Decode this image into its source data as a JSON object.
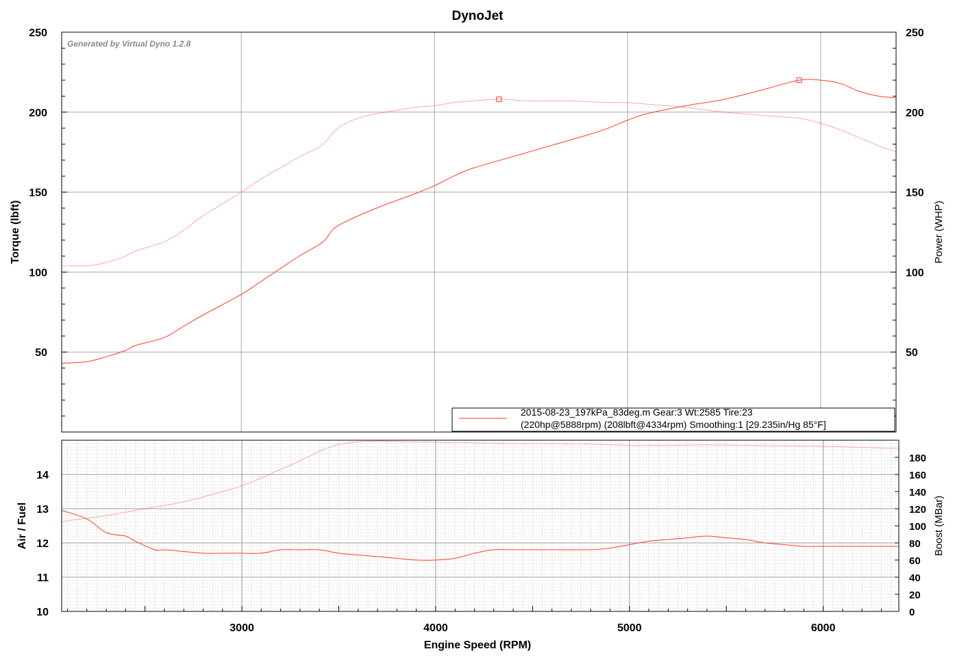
{
  "chart_data": [
    {
      "type": "line",
      "title": "DynoJet",
      "watermark": "Generated by Virtual Dyno 1.2.8",
      "xlim": [
        2070,
        6390
      ],
      "x_ticks": [
        "3000",
        "4000",
        "5000",
        "6000"
      ],
      "ylabel": "Torque (lbft)",
      "ylim": [
        0,
        250
      ],
      "y_ticks": [
        "50",
        "100",
        "150",
        "200",
        "250"
      ],
      "y2label": "Power (WHP)",
      "y2lim": [
        0,
        250
      ],
      "y2_ticks": [
        "50",
        "100",
        "150",
        "200",
        "250"
      ],
      "grid": true,
      "color": "#ff3a2a",
      "legend": {
        "placement": "bottom-right",
        "line1": "2015-08-23_197kPa_83deg.m Gear:3 Wt:2585 Tire:23",
        "line2": "(220hp@5888rpm) (208lbft@4334rpm) Smoothing:1 [29.235in/Hg 85°F]"
      },
      "series": [
        {
          "key": "torque",
          "style": "dotted",
          "axis": "left",
          "marker": [
            4334,
            208
          ],
          "x": [
            2070,
            2200,
            2300,
            2400,
            2450,
            2600,
            2700,
            2800,
            3000,
            3100,
            3200,
            3300,
            3400,
            3440,
            3500,
            3600,
            3700,
            3800,
            3900,
            4000,
            4100,
            4200,
            4334,
            4500,
            4700,
            4900,
            5000,
            5100,
            5300,
            5500,
            5700,
            5800,
            5900,
            6000,
            6100,
            6200,
            6300,
            6390
          ],
          "y": [
            104,
            104,
            106,
            110,
            113,
            119,
            126,
            135,
            150,
            158,
            165,
            172,
            178,
            182,
            190,
            196,
            199,
            201,
            203,
            204,
            206,
            207,
            208,
            207,
            207,
            206,
            206,
            205,
            203,
            200,
            198,
            197,
            196,
            193,
            189,
            184,
            179,
            175
          ]
        },
        {
          "key": "power",
          "style": "solid",
          "axis": "right",
          "marker": [
            5888,
            220
          ],
          "x": [
            2070,
            2200,
            2300,
            2400,
            2450,
            2600,
            2700,
            2800,
            3000,
            3100,
            3200,
            3300,
            3400,
            3440,
            3500,
            3700,
            3900,
            4000,
            4100,
            4200,
            4400,
            4600,
            4800,
            4900,
            5000,
            5100,
            5300,
            5500,
            5700,
            5888,
            6000,
            6100,
            6200,
            6300,
            6390
          ],
          "y": [
            43,
            44,
            47,
            51,
            54,
            59,
            66,
            73,
            86,
            94,
            102,
            110,
            117,
            121,
            129,
            140,
            149,
            154,
            160,
            165,
            172,
            179,
            186,
            190,
            195,
            199,
            204,
            208,
            214,
            220,
            220,
            218,
            213,
            210,
            209
          ]
        }
      ]
    },
    {
      "type": "line",
      "xlabel": "Engine Speed (RPM)",
      "xlim": [
        2070,
        6390
      ],
      "x_ticks": [
        "3000",
        "4000",
        "5000",
        "6000"
      ],
      "ylabel": "Air / Fuel",
      "ylim": [
        10,
        15
      ],
      "y_ticks": [
        "10",
        "11",
        "12",
        "13",
        "14"
      ],
      "y2label": "Boost (MBar)",
      "y2lim": [
        0,
        200
      ],
      "y2_ticks": [
        "0",
        "20",
        "40",
        "60",
        "80",
        "100",
        "120",
        "140",
        "160",
        "180"
      ],
      "grid": true,
      "series": [
        {
          "key": "afr",
          "style": "solid",
          "axis": "left",
          "x": [
            2070,
            2200,
            2300,
            2400,
            2450,
            2550,
            2600,
            2700,
            2800,
            2900,
            3000,
            3100,
            3200,
            3300,
            3400,
            3500,
            3600,
            3700,
            3800,
            3900,
            4000,
            4100,
            4200,
            4300,
            4400,
            4600,
            4800,
            4900,
            5000,
            5100,
            5200,
            5300,
            5400,
            5500,
            5600,
            5700,
            5800,
            5900,
            6000,
            6100,
            6200,
            6390
          ],
          "y": [
            12.95,
            12.7,
            12.3,
            12.2,
            12.05,
            11.8,
            11.8,
            11.75,
            11.7,
            11.7,
            11.7,
            11.7,
            11.8,
            11.8,
            11.8,
            11.7,
            11.65,
            11.6,
            11.55,
            11.5,
            11.5,
            11.55,
            11.7,
            11.8,
            11.8,
            11.8,
            11.8,
            11.85,
            11.95,
            12.05,
            12.1,
            12.15,
            12.2,
            12.15,
            12.1,
            12.0,
            11.95,
            11.9,
            11.9,
            11.9,
            11.9,
            11.9
          ]
        },
        {
          "key": "boost",
          "style": "dotted",
          "axis": "right",
          "x": [
            2070,
            2300,
            2500,
            2700,
            2900,
            3000,
            3100,
            3200,
            3300,
            3400,
            3500,
            3600,
            3700,
            3800,
            4000,
            4200,
            4400,
            4600,
            4800,
            5000,
            5200,
            5400,
            5600,
            5800,
            6000,
            6200,
            6390
          ],
          "y": [
            105,
            112,
            120,
            128,
            140,
            147,
            156,
            166,
            176,
            187,
            195,
            198,
            199,
            198.5,
            197.5,
            197,
            196,
            196,
            195.5,
            194,
            194,
            194.5,
            194,
            193.5,
            193,
            191.5,
            190.5
          ]
        }
      ]
    }
  ]
}
